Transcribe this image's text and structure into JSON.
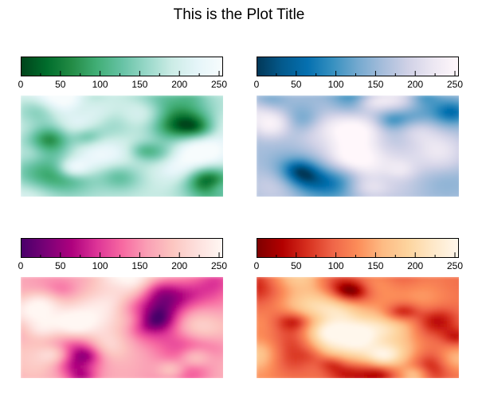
{
  "title": "This is the Plot Title",
  "chart_data": [
    {
      "type": "heatmap",
      "colormap": "Greens (reversed)",
      "colors": [
        "#00441b",
        "#006d2c",
        "#238b45",
        "#41ae76",
        "#66c2a4",
        "#99d8c9",
        "#ccece6",
        "#e5f5f9",
        "#f7fcfd"
      ],
      "clim": [
        0,
        255
      ],
      "colorbar_ticks": [
        0,
        50,
        100,
        150,
        200,
        250
      ],
      "colorbar_position": "top"
    },
    {
      "type": "heatmap",
      "colormap": "Blues (reversed)",
      "colors": [
        "#023858",
        "#045a8d",
        "#0570b0",
        "#3690c0",
        "#74a9cf",
        "#a6bddb",
        "#d0d1e6",
        "#ece7f2",
        "#fff7fb"
      ],
      "clim": [
        0,
        255
      ],
      "colorbar_ticks": [
        0,
        50,
        100,
        150,
        200,
        250
      ],
      "colorbar_position": "top"
    },
    {
      "type": "heatmap",
      "colormap": "Purples-Pinks (reversed)",
      "colors": [
        "#49006a",
        "#7a0177",
        "#ae017e",
        "#dd3497",
        "#f768a1",
        "#fa9fb5",
        "#fcc5c0",
        "#fde0dd",
        "#fff7f3"
      ],
      "clim": [
        0,
        255
      ],
      "colorbar_ticks": [
        0,
        50,
        100,
        150,
        200,
        250
      ],
      "colorbar_position": "top"
    },
    {
      "type": "heatmap",
      "colormap": "Reds-Oranges (reversed)",
      "colors": [
        "#7f0000",
        "#b30000",
        "#d7301f",
        "#ef6548",
        "#fc8d59",
        "#fdbb84",
        "#fdd49e",
        "#fee8c8",
        "#fff7ec"
      ],
      "clim": [
        0,
        255
      ],
      "colorbar_ticks": [
        0,
        50,
        100,
        150,
        200,
        250
      ],
      "colorbar_position": "top"
    }
  ]
}
